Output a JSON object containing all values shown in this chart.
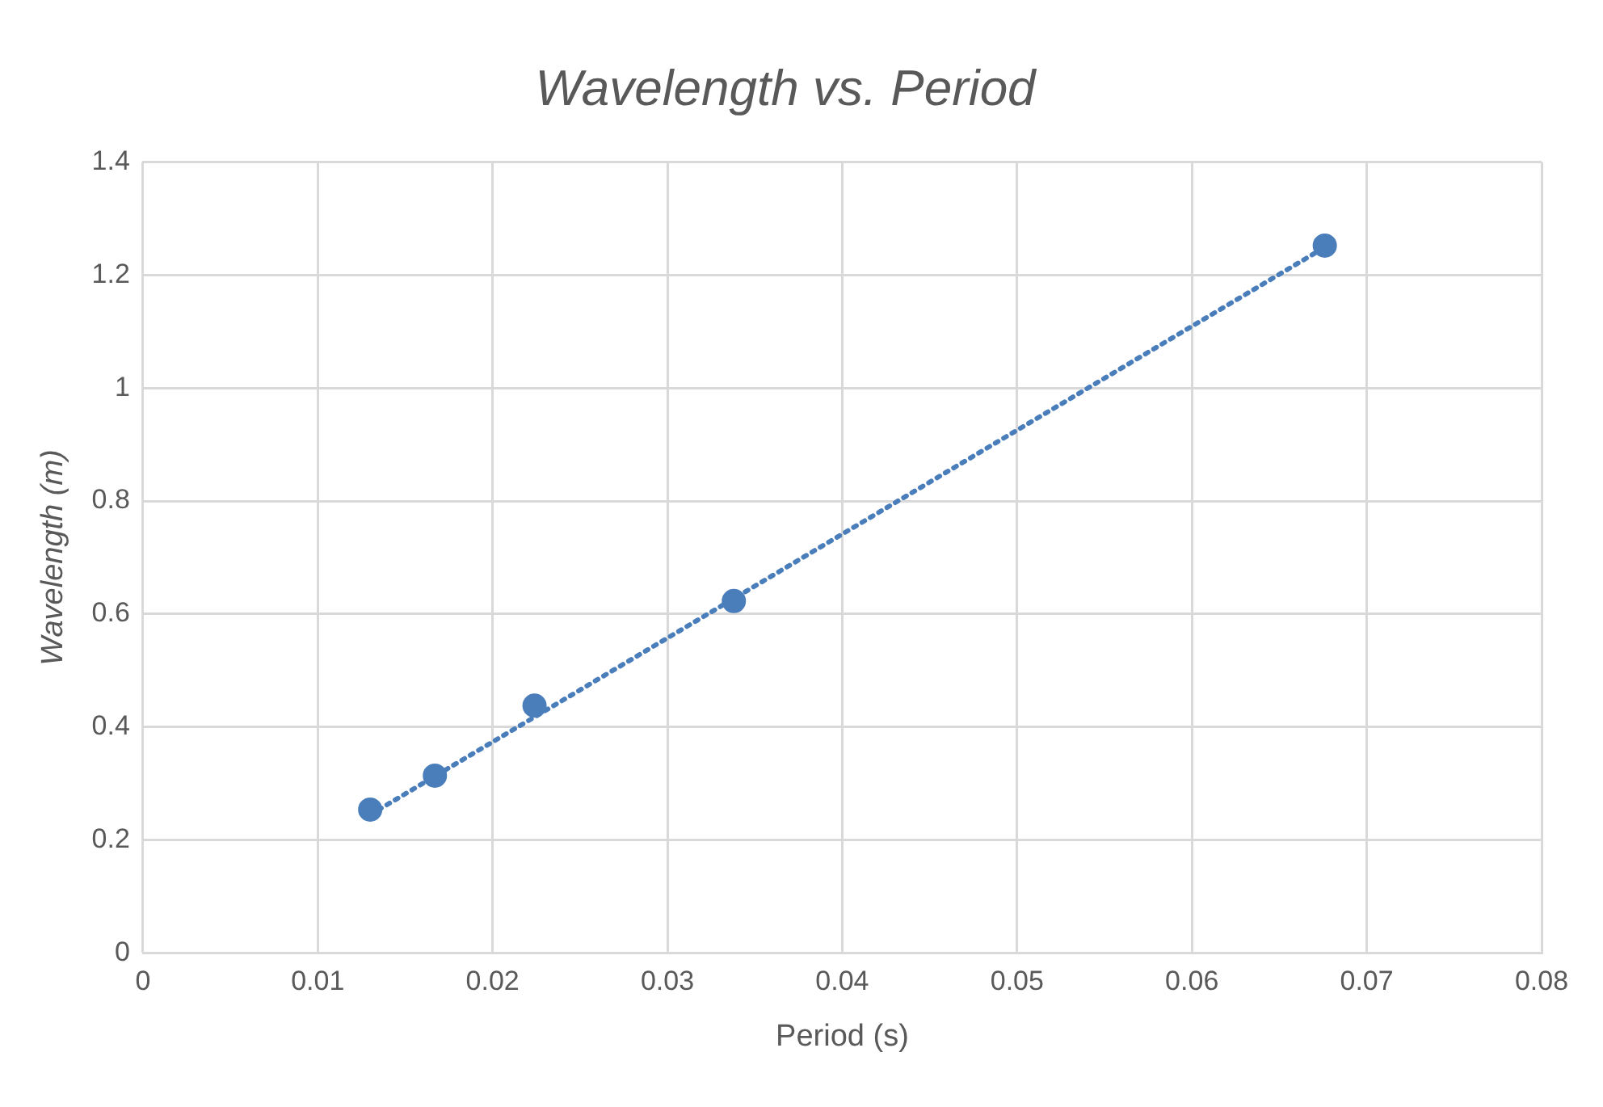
{
  "chart_data": {
    "type": "scatter",
    "title": "Wavelength vs. Period",
    "xlabel": "Period (s)",
    "ylabel": "Wavelength (m)",
    "series": [
      {
        "color": "#4a7ebb",
        "marker": "circle",
        "x": [
          0.013,
          0.0167,
          0.0224,
          0.0338,
          0.0676
        ],
        "values": [
          0.254,
          0.314,
          0.438,
          0.623,
          1.252
        ]
      },
      {
        "type": "line",
        "color": "#4a7ebb",
        "line_style": "dotted",
        "marker": "none",
        "x": [
          0.013,
          0.0676
        ],
        "values": [
          0.245,
          1.249
        ]
      }
    ],
    "xlim": [
      0,
      0.08
    ],
    "xticks": [
      0,
      0.01,
      0.02,
      0.03,
      0.04,
      0.05,
      0.06,
      0.07,
      0.08
    ],
    "ylim": [
      0,
      1.4
    ],
    "yticks": [
      0,
      0.2,
      0.4,
      0.6,
      0.8,
      1,
      1.2,
      1.4
    ],
    "grid": true,
    "legend": false
  }
}
